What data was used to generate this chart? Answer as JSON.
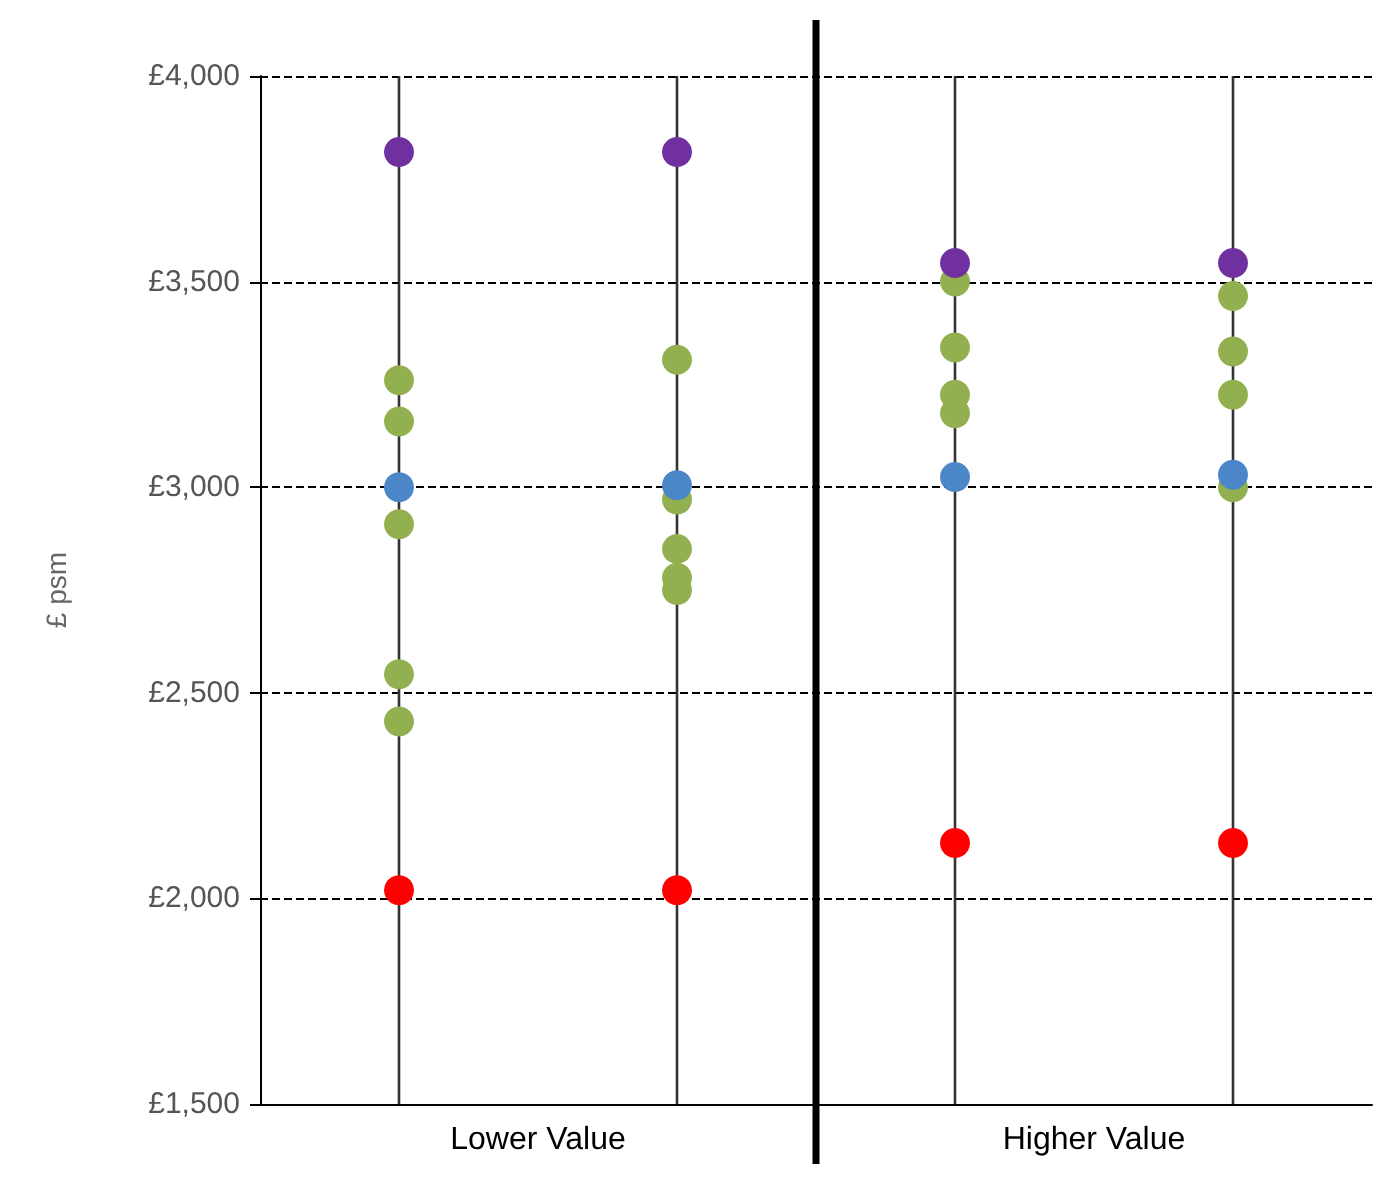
{
  "chart_data": {
    "type": "scatter",
    "ylabel": "£ psm",
    "marker": "circle",
    "grid": true,
    "categories": [
      null,
      null,
      null,
      null
    ],
    "annotations": [
      "Lower Value",
      "Higher Value"
    ],
    "ylim": [
      1500,
      4000
    ],
    "yticks": [
      {
        "value": 1500,
        "label": "£1,500"
      },
      {
        "value": 2000,
        "label": "£2,000"
      },
      {
        "value": 2500,
        "label": "£2,500"
      },
      {
        "value": 3000,
        "label": "£3,000"
      },
      {
        "value": 3500,
        "label": "£3,500"
      },
      {
        "value": 4000,
        "label": "£4,000"
      }
    ],
    "ref_lines": [
      {
        "axis": "x",
        "color": "#000000"
      }
    ],
    "series": [
      {
        "color": "#92b050",
        "values": [
          3260,
          3310,
          3500,
          3465
        ]
      },
      {
        "color": "#92b050",
        "values": [
          3160,
          2970,
          3340,
          3330
        ]
      },
      {
        "color": "#92b050",
        "values": [
          2910,
          2850,
          3225,
          3225
        ]
      },
      {
        "color": "#92b050",
        "values": [
          2545,
          2780,
          3180,
          3000
        ]
      },
      {
        "color": "#92b050",
        "values": [
          2430,
          2750,
          null,
          null
        ]
      },
      {
        "color": "#4a86c8",
        "values": [
          3000,
          3005,
          3025,
          3030
        ]
      },
      {
        "color": "#7030a0",
        "values": [
          3815,
          3815,
          3545,
          3545
        ]
      },
      {
        "color": "#ff0000",
        "values": [
          2020,
          2020,
          2135,
          2135
        ]
      }
    ]
  }
}
